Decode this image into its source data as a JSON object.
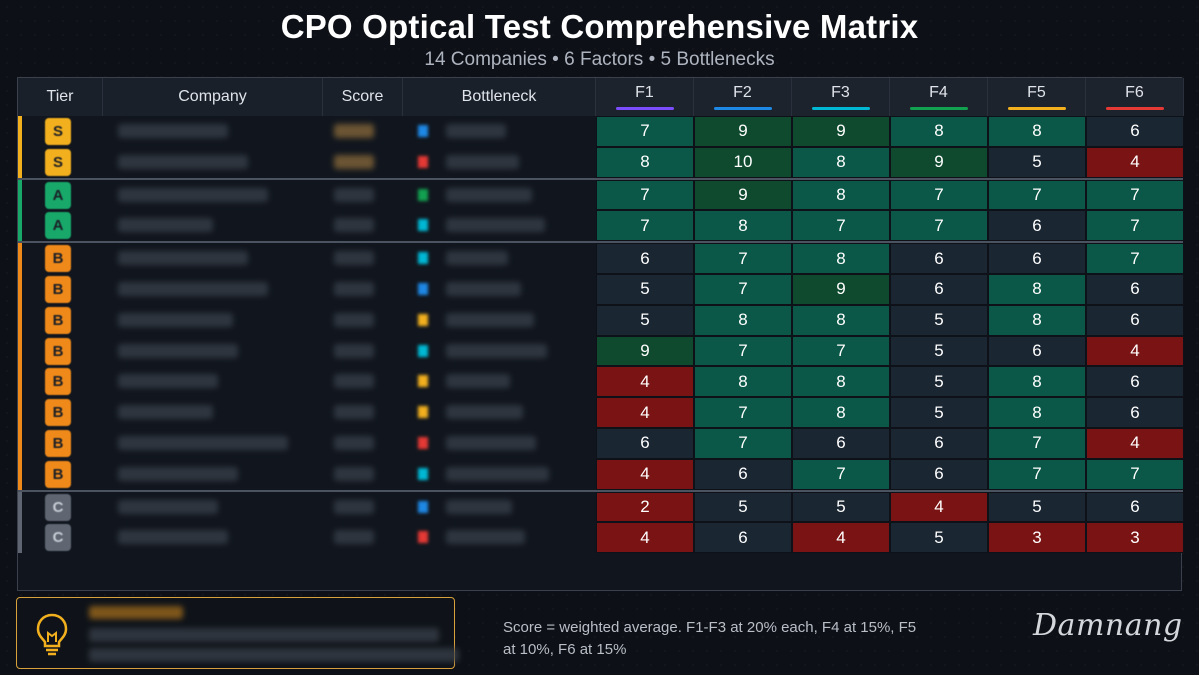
{
  "title": "CPO Optical Test Comprehensive Matrix",
  "subtitle": "14 Companies • 6 Factors • 5 Bottlenecks",
  "headers": {
    "tier": "Tier",
    "company": "Company",
    "score": "Score",
    "bottleneck": "Bottleneck"
  },
  "colors": {
    "cell_high": "#0f4a2f",
    "cell_good": "#0c5848",
    "cell_mid": "#1b2633",
    "cell_low": "#7a1313",
    "tier_S": "#f2b01e",
    "tier_A": "#17a86a",
    "tier_B": "#ef8a1a",
    "tier_C": "#5f6672"
  },
  "factor_colors": [
    "#7c4dff",
    "#1e88e5",
    "#00b8d4",
    "#12a150",
    "#f2b01e",
    "#e53935"
  ],
  "chart_data": {
    "type": "heatmap",
    "title": "CPO Optical Test Comprehensive Matrix",
    "subtitle": "14 Companies • 6 Factors • 5 Bottlenecks",
    "columns": [
      "F1",
      "F2",
      "F3",
      "F4",
      "F5",
      "F6"
    ],
    "rows": [
      {
        "tier": "S",
        "values": [
          7,
          9,
          9,
          8,
          8,
          6
        ]
      },
      {
        "tier": "S",
        "values": [
          8,
          10,
          8,
          9,
          5,
          4
        ]
      },
      {
        "tier": "A",
        "values": [
          7,
          9,
          8,
          7,
          7,
          7
        ]
      },
      {
        "tier": "A",
        "values": [
          7,
          8,
          7,
          7,
          6,
          7
        ]
      },
      {
        "tier": "B",
        "values": [
          6,
          7,
          8,
          6,
          6,
          7
        ]
      },
      {
        "tier": "B",
        "values": [
          5,
          7,
          9,
          6,
          8,
          6
        ]
      },
      {
        "tier": "B",
        "values": [
          5,
          8,
          8,
          5,
          8,
          6
        ]
      },
      {
        "tier": "B",
        "values": [
          9,
          7,
          7,
          5,
          6,
          4
        ]
      },
      {
        "tier": "B",
        "values": [
          4,
          8,
          8,
          5,
          8,
          6
        ]
      },
      {
        "tier": "B",
        "values": [
          4,
          7,
          8,
          5,
          8,
          6
        ]
      },
      {
        "tier": "B",
        "values": [
          6,
          7,
          6,
          6,
          7,
          4
        ]
      },
      {
        "tier": "B",
        "values": [
          4,
          6,
          7,
          6,
          7,
          7
        ]
      },
      {
        "tier": "C",
        "values": [
          2,
          5,
          5,
          4,
          5,
          6
        ]
      },
      {
        "tier": "C",
        "values": [
          4,
          6,
          4,
          5,
          3,
          3
        ]
      }
    ]
  },
  "note": "Score = weighted average. F1-F3 at 20% each, F4 at 15%, F5 at 10%, F6 at 15%",
  "signature": "Damnang",
  "icons": {
    "insight": "lightbulb-icon"
  }
}
